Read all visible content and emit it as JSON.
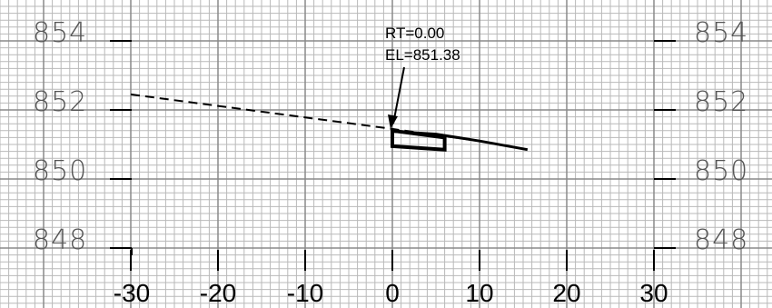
{
  "section": {
    "callout": {
      "station": "RT=0.00",
      "elevation": "EL=851.38"
    },
    "elevation_labels": [
      {
        "text": "854",
        "value": 854
      },
      {
        "text": "852",
        "value": 852
      },
      {
        "text": "850",
        "value": 850
      },
      {
        "text": "848",
        "value": 848
      }
    ],
    "offset_labels": [
      {
        "text": "-30",
        "value": -30
      },
      {
        "text": "-20",
        "value": -20
      },
      {
        "text": "-10",
        "value": -10
      },
      {
        "text": "0",
        "value": 0
      },
      {
        "text": "10",
        "value": 10
      },
      {
        "text": "20",
        "value": 20
      },
      {
        "text": "30",
        "value": 30
      }
    ],
    "existing_ground_dashed": [
      [
        -30,
        852.45
      ],
      [
        0,
        851.45
      ],
      [
        10,
        851.1
      ]
    ],
    "proposed_surface_solid": [
      [
        0,
        851.38
      ],
      [
        5,
        851.3
      ],
      [
        10,
        851.1
      ],
      [
        15.5,
        850.85
      ]
    ],
    "structure_box": [
      [
        0,
        851.4
      ],
      [
        6,
        851.2
      ],
      [
        6,
        850.85
      ],
      [
        0,
        850.95
      ]
    ],
    "colors": {
      "grid_minor": "#b9b9b9",
      "grid_major": "#8a8a8a",
      "ink": "#000000",
      "label_grey": "#555555"
    }
  }
}
